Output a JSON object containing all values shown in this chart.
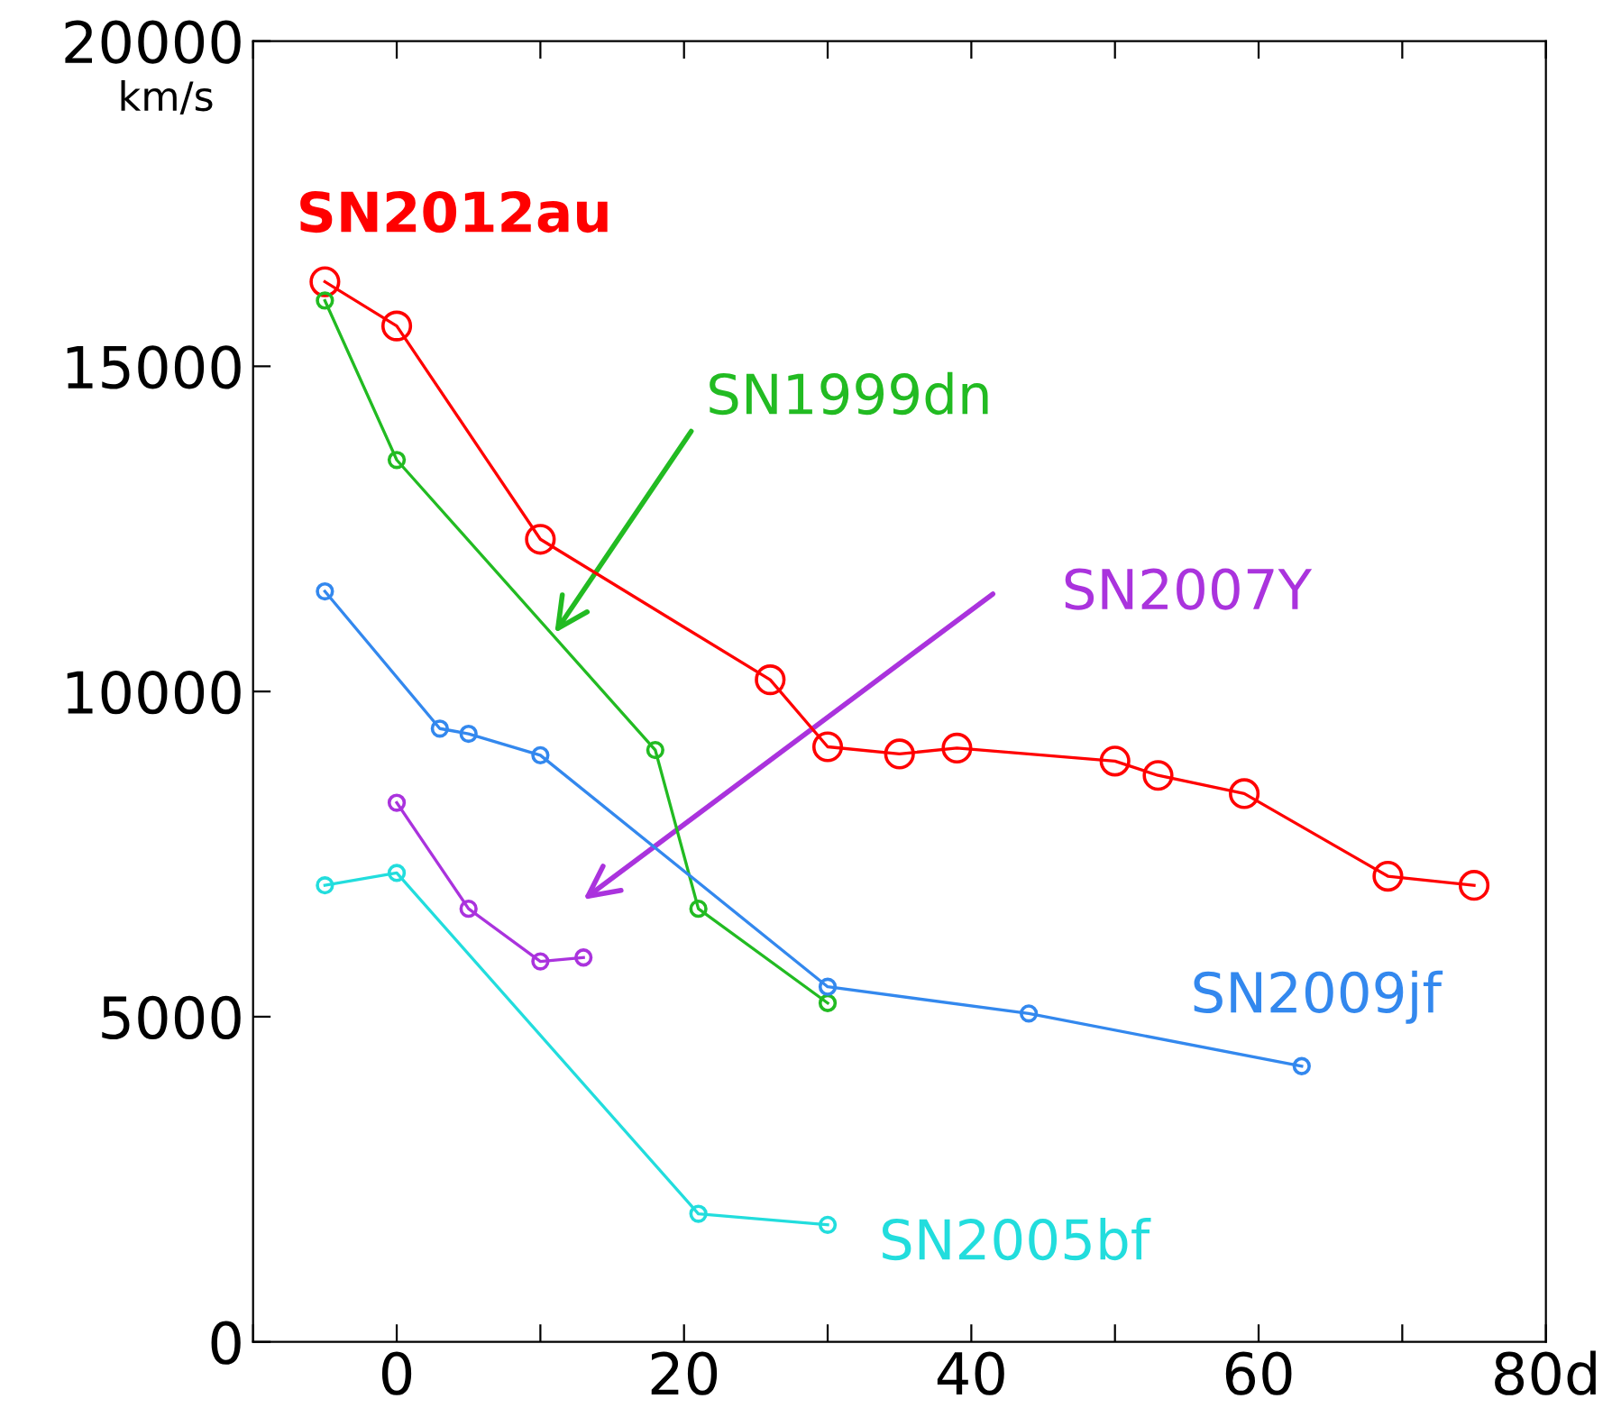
{
  "chart_data": {
    "type": "line",
    "ylabel": "km/s",
    "xlim": [
      -10,
      80
    ],
    "ylim": [
      0,
      20000
    ],
    "xticks": [
      {
        "value": -10,
        "label": null
      },
      0,
      {
        "value": 10,
        "label": null
      },
      20,
      {
        "value": 30,
        "label": null
      },
      40,
      {
        "value": 50,
        "label": null
      },
      60,
      {
        "value": 70,
        "label": null
      },
      {
        "value": 80,
        "label": "80d"
      }
    ],
    "yticks": [
      0,
      5000,
      10000,
      15000,
      20000
    ],
    "grid": false,
    "legend": false,
    "marker": "circle",
    "line_style": "solid",
    "series": [
      {
        "name": "SN2012au",
        "color": "#ff0000",
        "x": [
          -5,
          0,
          10,
          26,
          30,
          35,
          39,
          50,
          53,
          59,
          69,
          75
        ],
        "values": [
          16300,
          15620,
          12340,
          10180,
          9150,
          9040,
          9130,
          8930,
          8710,
          8430,
          7160,
          7020
        ]
      },
      {
        "name": "SN1999dn",
        "color": "#22bb22",
        "x": [
          -5,
          0,
          18,
          21,
          30
        ],
        "values": [
          16010,
          13560,
          9100,
          6660,
          5210
        ]
      },
      {
        "name": "SN2007Y",
        "color": "#aa33dd",
        "x": [
          0,
          5,
          10,
          13
        ],
        "values": [
          8290,
          6660,
          5850,
          5910
        ]
      },
      {
        "name": "SN2009jf",
        "color": "#3388ee",
        "x": [
          -5,
          3,
          5,
          10,
          30,
          44,
          63
        ],
        "values": [
          11540,
          9430,
          9350,
          9020,
          5460,
          5050,
          4240
        ]
      },
      {
        "name": "SN2005bf",
        "color": "#22dddd",
        "x": [
          -5,
          0,
          21,
          30
        ],
        "values": [
          7020,
          7210,
          1970,
          1800
        ]
      }
    ]
  }
}
